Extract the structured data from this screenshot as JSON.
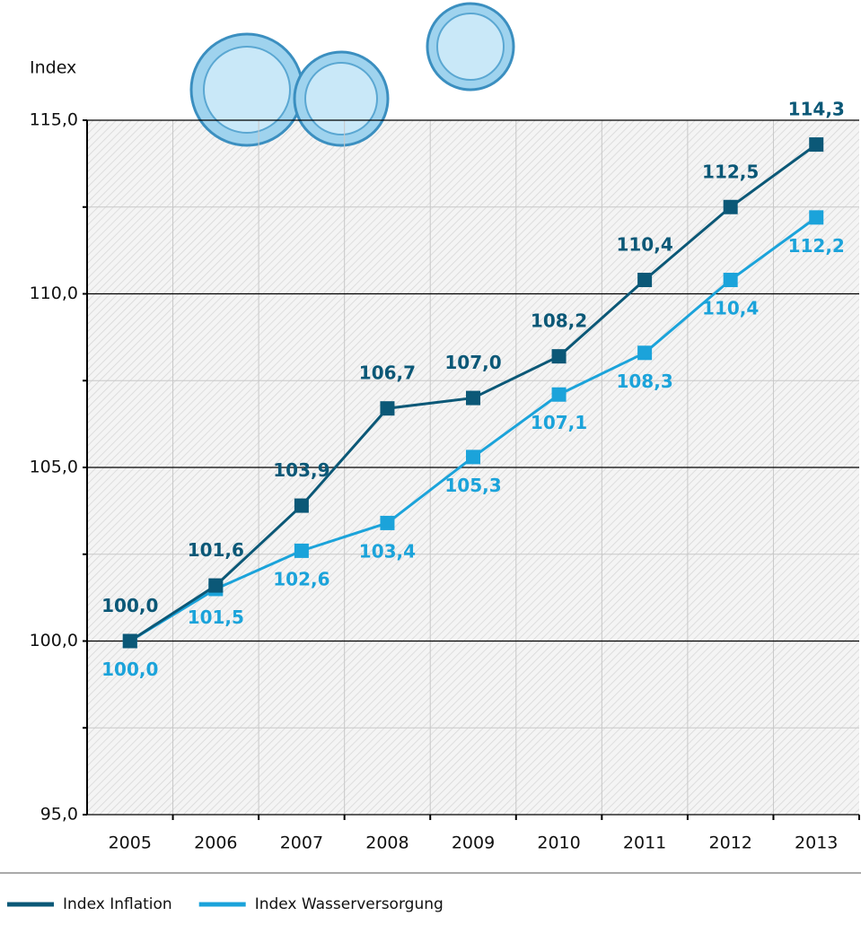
{
  "chart_data": {
    "type": "line",
    "y_label": "Index",
    "categories": [
      "2005",
      "2006",
      "2007",
      "2008",
      "2009",
      "2010",
      "2011",
      "2012",
      "2013"
    ],
    "series": [
      {
        "name": "Index Inflation",
        "color": "#0b5877",
        "values": [
          100.0,
          101.6,
          103.9,
          106.7,
          107.0,
          108.2,
          110.4,
          112.5,
          114.3
        ],
        "value_labels": [
          "100,0",
          "101,6",
          "103,9",
          "106,7",
          "107,0",
          "108,2",
          "110,4",
          "112,5",
          "114,3"
        ]
      },
      {
        "name": "Index Wasserversorgung",
        "color": "#1ba3da",
        "values": [
          100.0,
          101.5,
          102.6,
          103.4,
          105.3,
          107.1,
          108.3,
          110.4,
          112.2
        ],
        "value_labels": [
          "100,0",
          "101,5",
          "102,6",
          "103,4",
          "105,3",
          "107,1",
          "108,3",
          "110,4",
          "112,2"
        ]
      }
    ],
    "ylim": [
      95,
      115
    ],
    "yticks": [
      {
        "value": 95,
        "label": "95,0"
      },
      {
        "value": 100,
        "label": "100,0"
      },
      {
        "value": 105,
        "label": "105,0"
      },
      {
        "value": 110,
        "label": "110,0"
      },
      {
        "value": 115,
        "label": "115,0"
      }
    ],
    "grid": true
  }
}
